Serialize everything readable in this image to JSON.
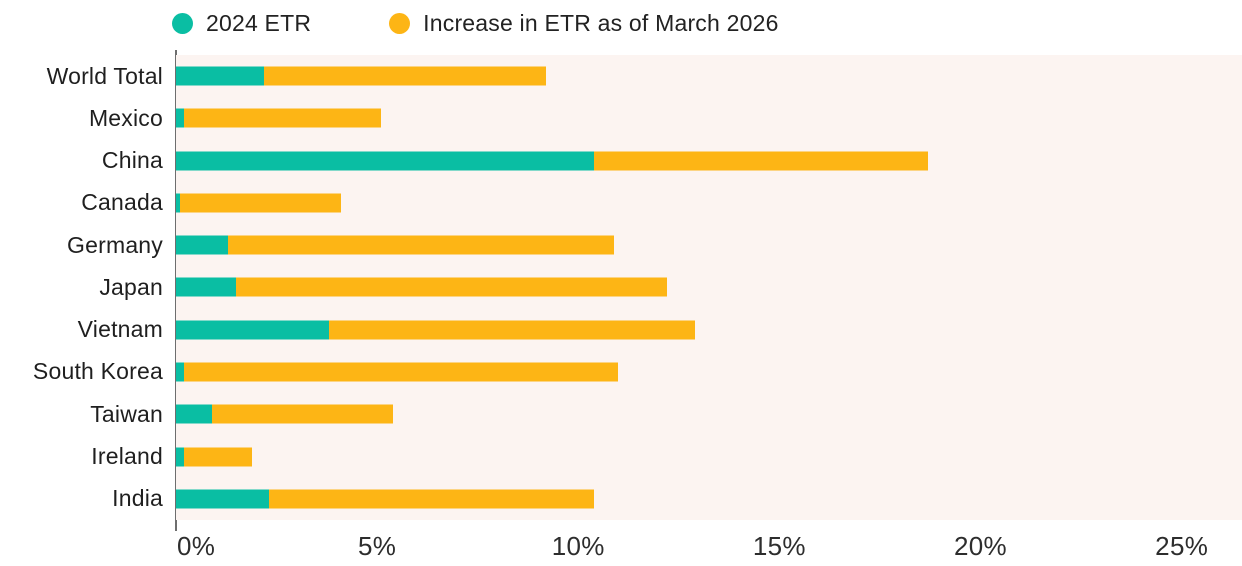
{
  "legend": {
    "items": [
      {
        "label": "2024 ETR",
        "color": "#0ABEA3"
      },
      {
        "label": "Increase in ETR as of March 2026",
        "color": "#FDB515"
      }
    ]
  },
  "chart_data": {
    "type": "bar",
    "orientation": "horizontal",
    "stacked": true,
    "title": "",
    "xlabel": "",
    "ylabel": "",
    "categories": [
      "World Total",
      "Mexico",
      "China",
      "Canada",
      "Germany",
      "Japan",
      "Vietnam",
      "South Korea",
      "Taiwan",
      "Ireland",
      "India"
    ],
    "series": [
      {
        "name": "2024 ETR",
        "color": "#0ABEA3",
        "values": [
          2.2,
          0.2,
          10.4,
          0.1,
          1.3,
          1.5,
          3.8,
          0.2,
          0.9,
          0.2,
          2.3
        ]
      },
      {
        "name": "Increase in ETR as of March 2026",
        "color": "#FDB515",
        "values": [
          7.0,
          4.9,
          8.3,
          4.0,
          9.6,
          10.7,
          9.1,
          10.8,
          4.5,
          1.7,
          8.1
        ]
      }
    ],
    "stacked_totals": [
      9.2,
      5.1,
      18.7,
      4.1,
      10.9,
      12.2,
      12.9,
      11.0,
      5.4,
      1.9,
      10.4
    ],
    "x_axis": {
      "unit": "%",
      "tick_labels": [
        "0%",
        "5%",
        "10%",
        "15%",
        "20%",
        "25%"
      ],
      "tick_values": [
        0,
        5,
        10,
        15,
        20,
        25
      ],
      "min": 0,
      "max": 26.5
    },
    "legend_position": "top",
    "grid": false,
    "plot_background_color": "#FCF4F1",
    "axis_line_color": "#6E6E6E"
  }
}
